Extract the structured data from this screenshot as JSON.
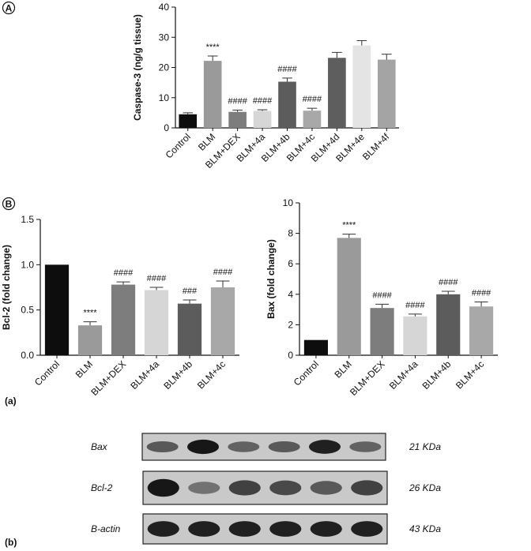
{
  "chart_data": [
    {
      "type": "bar",
      "panel_label": "A",
      "categories": [
        "Control",
        "BLM",
        "BLM+DEX",
        "BLM+4a",
        "BLM+4b",
        "BLM+4c",
        "BLM+4d",
        "BLM+4e",
        "BLM+4f"
      ],
      "values": [
        4.5,
        22.2,
        5.3,
        5.6,
        15.3,
        5.7,
        23.2,
        27.3,
        22.6
      ],
      "errors": [
        0.5,
        1.6,
        0.6,
        0.4,
        1.2,
        0.8,
        1.8,
        1.6,
        1.8
      ],
      "significance": [
        "",
        "****",
        "####",
        "####",
        "####",
        "####",
        "",
        "",
        ""
      ],
      "colors": [
        "#0d0d0d",
        "#9a9a9a",
        "#7d7d7d",
        "#d6d6d6",
        "#5c5c5c",
        "#a8a8a8",
        "#5e5e5e",
        "#e4e4e4",
        "#a4a4a4"
      ],
      "ylabel": "Caspase-3 (ng/g tissue)",
      "ylim": [
        0,
        40
      ],
      "yticks": [
        "0",
        "10",
        "20",
        "30",
        "40"
      ],
      "grid": false
    },
    {
      "type": "bar",
      "panel_label": "B",
      "categories": [
        "Control",
        "BLM",
        "BLM+DEX",
        "BLM+4a",
        "BLM+4b",
        "BLM+4c"
      ],
      "values": [
        1.0,
        0.33,
        0.78,
        0.72,
        0.57,
        0.75
      ],
      "errors": [
        0.0,
        0.04,
        0.03,
        0.03,
        0.04,
        0.07
      ],
      "significance": [
        "",
        "****",
        "####",
        "####",
        "###",
        "####"
      ],
      "colors": [
        "#0d0d0d",
        "#9a9a9a",
        "#7d7d7d",
        "#d6d6d6",
        "#5c5c5c",
        "#a8a8a8"
      ],
      "ylabel": "Bcl-2 (fold change)",
      "ylim": [
        0,
        1.5
      ],
      "yticks": [
        "0.0",
        "0.5",
        "1.0",
        "1.5"
      ],
      "grid": false
    },
    {
      "type": "bar",
      "categories": [
        "Control",
        "BLM",
        "BLM+DEX",
        "BLM+4a",
        "BLM+4b",
        "BLM+4c"
      ],
      "values": [
        1.0,
        7.7,
        3.1,
        2.55,
        4.0,
        3.2
      ],
      "errors": [
        0.0,
        0.25,
        0.25,
        0.15,
        0.2,
        0.3
      ],
      "significance": [
        "",
        "****",
        "####",
        "####",
        "####",
        "####"
      ],
      "colors": [
        "#0d0d0d",
        "#9a9a9a",
        "#7d7d7d",
        "#d6d6d6",
        "#5c5c5c",
        "#a8a8a8"
      ],
      "ylabel": "Bax (fold change)",
      "ylim": [
        0,
        10
      ],
      "yticks": [
        "0",
        "2",
        "4",
        "6",
        "8",
        "10"
      ],
      "grid": false
    }
  ],
  "sub_labels": {
    "a": "(a)",
    "b": "(b)"
  },
  "western_blot": {
    "rows": [
      {
        "protein": "Bax",
        "kda": "21 KDa",
        "band_intensity": [
          0.55,
          0.95,
          0.5,
          0.55,
          0.9,
          0.5
        ]
      },
      {
        "protein": "Bcl-2",
        "kda": "26 KDa",
        "band_intensity": [
          0.95,
          0.4,
          0.7,
          0.65,
          0.55,
          0.7
        ]
      },
      {
        "protein": "B-actin",
        "kda": "43 KDa",
        "band_intensity": [
          0.9,
          0.9,
          0.9,
          0.9,
          0.9,
          0.9
        ]
      }
    ]
  }
}
